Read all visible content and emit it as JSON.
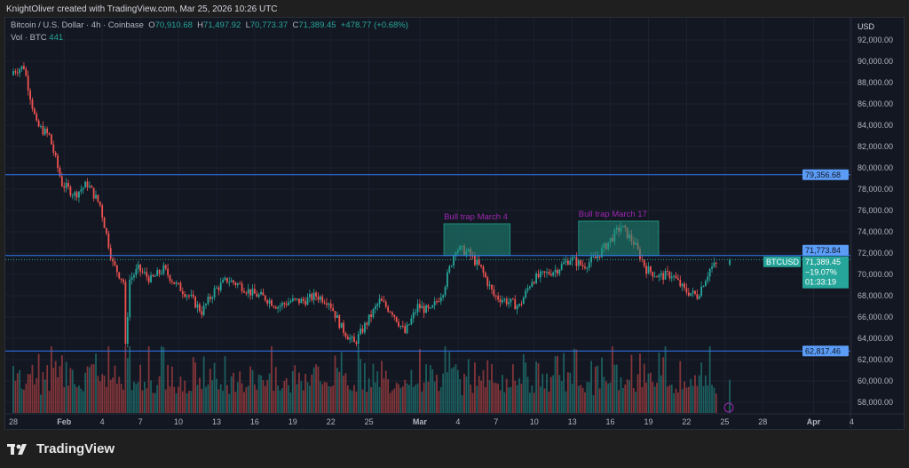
{
  "credit": "KnightOliver created with TradingView.com, Mar 25, 2026 10:26 UTC",
  "legend": {
    "symbol": "Bitcoin / U.S. Dollar · 4h · Coinbase",
    "o_label": "O",
    "o": "70,910.68",
    "h_label": "H",
    "h": "71,497.92",
    "l_label": "L",
    "l": "70,773.37",
    "c_label": "C",
    "c": "71,389.45",
    "change": "+478.77 (+0.68%)",
    "vol_label": "Vol · BTC",
    "vol": "441"
  },
  "currency": "USD",
  "brand": "TradingView",
  "colors": {
    "up": "#26a69a",
    "down": "#ef5350",
    "line": "#3179f5",
    "label": "#5b9cf6",
    "annotation": "#9c27b0",
    "box": "#1e8c7a"
  },
  "chart_data": {
    "type": "candlestick",
    "interval": "4h",
    "ylim": [
      57000,
      93000
    ],
    "y_ticks": [
      58000,
      60000,
      62000,
      64000,
      66000,
      68000,
      70000,
      72000,
      74000,
      76000,
      78000,
      80000,
      82000,
      84000,
      86000,
      88000,
      90000,
      92000
    ],
    "y_tick_labels": [
      "58,000.00",
      "60,000.00",
      "62,000.00",
      "64,000.00",
      "66,000.00",
      "68,000.00",
      "70,000.00",
      "72,000.00",
      "74,000.00",
      "76,000.00",
      "78,000.00",
      "80,000.00",
      "82,000.00",
      "84,000.00",
      "86,000.00",
      "88,000.00",
      "90,000.00",
      "92,000.00"
    ],
    "x_ticks": [
      {
        "day": 0,
        "label": "28"
      },
      {
        "day": 4,
        "label": "Feb"
      },
      {
        "day": 7,
        "label": "4"
      },
      {
        "day": 10,
        "label": "7"
      },
      {
        "day": 13,
        "label": "10"
      },
      {
        "day": 16,
        "label": "13"
      },
      {
        "day": 19,
        "label": "16"
      },
      {
        "day": 22,
        "label": "19"
      },
      {
        "day": 25,
        "label": "22"
      },
      {
        "day": 28,
        "label": "25"
      },
      {
        "day": 32,
        "label": "Mar"
      },
      {
        "day": 35,
        "label": "4"
      },
      {
        "day": 38,
        "label": "7"
      },
      {
        "day": 41,
        "label": "10"
      },
      {
        "day": 44,
        "label": "13"
      },
      {
        "day": 47,
        "label": "16"
      },
      {
        "day": 50,
        "label": "19"
      },
      {
        "day": 53,
        "label": "22"
      },
      {
        "day": 56,
        "label": "25"
      },
      {
        "day": 59,
        "label": "28"
      },
      {
        "day": 63,
        "label": "Apr"
      },
      {
        "day": 66,
        "label": "4"
      }
    ],
    "daily_close_from_jan28": [
      89000,
      89500,
      84000,
      83000,
      78500,
      77500,
      78500,
      76500,
      71000,
      69000,
      70500,
      69500,
      70500,
      69000,
      68000,
      66500,
      68500,
      69500,
      69000,
      68200,
      67800,
      67000,
      67500,
      67500,
      68000,
      67500,
      65000,
      63500,
      65500,
      67500,
      66500,
      64500,
      67000,
      66500,
      68500,
      72500,
      72000,
      70500,
      68000,
      67500,
      67000,
      69500,
      70000,
      70500,
      71500,
      70800,
      71500,
      73000,
      74500,
      73000,
      70500,
      69800,
      70000,
      68500,
      68000,
      70500,
      71389.45
    ],
    "horizontal_lines": [
      {
        "price": 79356.68,
        "label": "79,356.68"
      },
      {
        "price": 71773.84,
        "label": "71,773.84"
      },
      {
        "price": 62817.46,
        "label": "62,817.46"
      }
    ],
    "annotations": [
      {
        "text": "Bull trap March 4",
        "day_from": 33.9,
        "day_to": 39.1,
        "price_from": 71774,
        "price_to": 74750
      },
      {
        "text": "Bull trap March 17",
        "day_from": 44.5,
        "day_to": 50.8,
        "price_from": 71774,
        "price_to": 75000
      }
    ],
    "last_price": {
      "symbol": "BTCUSD",
      "price": "71,389.45",
      "change": "−19.07%",
      "countdown": "01:33:19"
    }
  }
}
